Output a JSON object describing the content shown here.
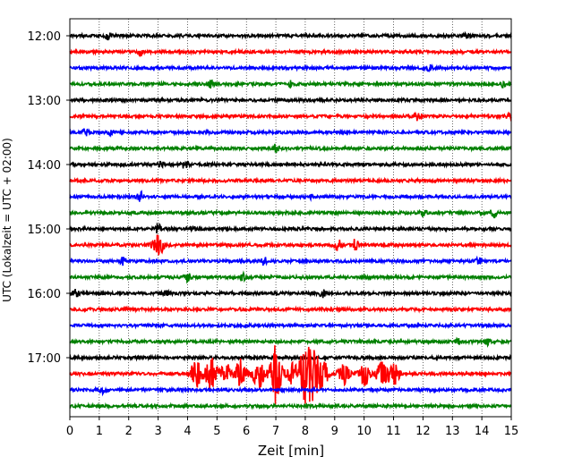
{
  "chart_data": {
    "type": "line",
    "title": "",
    "xlabel": "Zeit  [min]",
    "ylabel": "UTC (Lokalzeit = UTC + 02:00)",
    "xlim": [
      0,
      15
    ],
    "x_ticks": [
      "0",
      "1",
      "2",
      "3",
      "4",
      "5",
      "6",
      "7",
      "8",
      "9",
      "10",
      "11",
      "12",
      "13",
      "14",
      "15"
    ],
    "y_ticks": [
      "12:00",
      "13:00",
      "14:00",
      "15:00",
      "16:00",
      "17:00"
    ],
    "grid": "vertical dotted lines at each minute",
    "row_interval_minutes": 15,
    "color_cycle": [
      "#000000",
      "#ff0000",
      "#0000ff",
      "#008000"
    ],
    "series": [
      {
        "start": "12:00",
        "color": "#000000",
        "events": [
          {
            "t": 1.3,
            "a": 0.35
          },
          {
            "t": 13.5,
            "a": 0.3
          }
        ]
      },
      {
        "start": "12:15",
        "color": "#ff0000",
        "events": [
          {
            "t": 2.4,
            "a": 0.3
          }
        ]
      },
      {
        "start": "12:30",
        "color": "#0000ff",
        "events": [
          {
            "t": 12.2,
            "a": 0.25
          }
        ]
      },
      {
        "start": "12:45",
        "color": "#008000",
        "events": [
          {
            "t": 4.8,
            "a": 0.35
          },
          {
            "t": 7.5,
            "a": 0.3
          },
          {
            "t": 14.7,
            "a": 0.25
          }
        ]
      },
      {
        "start": "13:00",
        "color": "#000000",
        "events": []
      },
      {
        "start": "13:15",
        "color": "#ff0000",
        "events": [
          {
            "t": 11.8,
            "a": 0.55
          },
          {
            "t": 14.9,
            "a": 0.3
          }
        ]
      },
      {
        "start": "13:30",
        "color": "#0000ff",
        "events": [
          {
            "t": 0.5,
            "a": 0.45
          },
          {
            "t": 1.4,
            "a": 0.3
          }
        ]
      },
      {
        "start": "13:45",
        "color": "#008000",
        "events": [
          {
            "t": 7.0,
            "a": 0.45
          }
        ]
      },
      {
        "start": "14:00",
        "color": "#000000",
        "events": [
          {
            "t": 3.1,
            "a": 0.3
          },
          {
            "t": 3.9,
            "a": 0.45
          }
        ]
      },
      {
        "start": "14:15",
        "color": "#ff0000",
        "events": []
      },
      {
        "start": "14:30",
        "color": "#0000ff",
        "events": [
          {
            "t": 2.4,
            "a": 0.5
          },
          {
            "t": 8.2,
            "a": 0.2
          }
        ]
      },
      {
        "start": "14:45",
        "color": "#008000",
        "events": [
          {
            "t": 12.0,
            "a": 0.35
          },
          {
            "t": 14.4,
            "a": 0.6
          }
        ]
      },
      {
        "start": "15:00",
        "color": "#000000",
        "events": [
          {
            "t": 3.0,
            "a": 0.5
          },
          {
            "t": 4.2,
            "a": 0.2
          }
        ]
      },
      {
        "start": "15:15",
        "color": "#ff0000",
        "events": [
          {
            "t": 3.0,
            "a": 1.3
          },
          {
            "t": 9.1,
            "a": 0.7
          },
          {
            "t": 9.7,
            "a": 0.75
          }
        ]
      },
      {
        "start": "15:30",
        "color": "#0000ff",
        "events": [
          {
            "t": 1.8,
            "a": 0.45
          },
          {
            "t": 6.6,
            "a": 0.4
          },
          {
            "t": 13.9,
            "a": 0.4
          }
        ]
      },
      {
        "start": "15:45",
        "color": "#008000",
        "events": [
          {
            "t": 4.0,
            "a": 0.45
          },
          {
            "t": 5.9,
            "a": 0.35
          }
        ]
      },
      {
        "start": "16:00",
        "color": "#000000",
        "events": [
          {
            "t": 0.2,
            "a": 0.45
          },
          {
            "t": 3.3,
            "a": 0.3
          },
          {
            "t": 8.6,
            "a": 0.5
          }
        ]
      },
      {
        "start": "16:15",
        "color": "#ff0000",
        "events": []
      },
      {
        "start": "16:30",
        "color": "#0000ff",
        "events": []
      },
      {
        "start": "16:45",
        "color": "#008000",
        "events": [
          {
            "t": 13.2,
            "a": 0.25
          },
          {
            "t": 14.2,
            "a": 0.35
          }
        ]
      },
      {
        "start": "17:00",
        "color": "#000000",
        "events": []
      },
      {
        "start": "17:15",
        "color": "#ff0000",
        "events": [
          {
            "t": 4.3,
            "a": 1.6
          },
          {
            "t": 4.8,
            "a": 2.2
          },
          {
            "t": 5.3,
            "a": 1.2
          },
          {
            "t": 5.8,
            "a": 1.6
          },
          {
            "t": 6.4,
            "a": 1.8
          },
          {
            "t": 7.0,
            "a": 3.5
          },
          {
            "t": 7.6,
            "a": 2.0
          },
          {
            "t": 8.0,
            "a": 3.2
          },
          {
            "t": 8.3,
            "a": 3.0
          },
          {
            "t": 8.6,
            "a": 1.6
          },
          {
            "t": 9.3,
            "a": 1.2
          },
          {
            "t": 10.0,
            "a": 1.3
          },
          {
            "t": 10.6,
            "a": 1.4
          },
          {
            "t": 11.0,
            "a": 1.3
          }
        ]
      },
      {
        "start": "17:30",
        "color": "#0000ff",
        "events": [
          {
            "t": 1.1,
            "a": 0.35
          }
        ]
      },
      {
        "start": "17:45",
        "color": "#008000",
        "events": []
      }
    ]
  }
}
